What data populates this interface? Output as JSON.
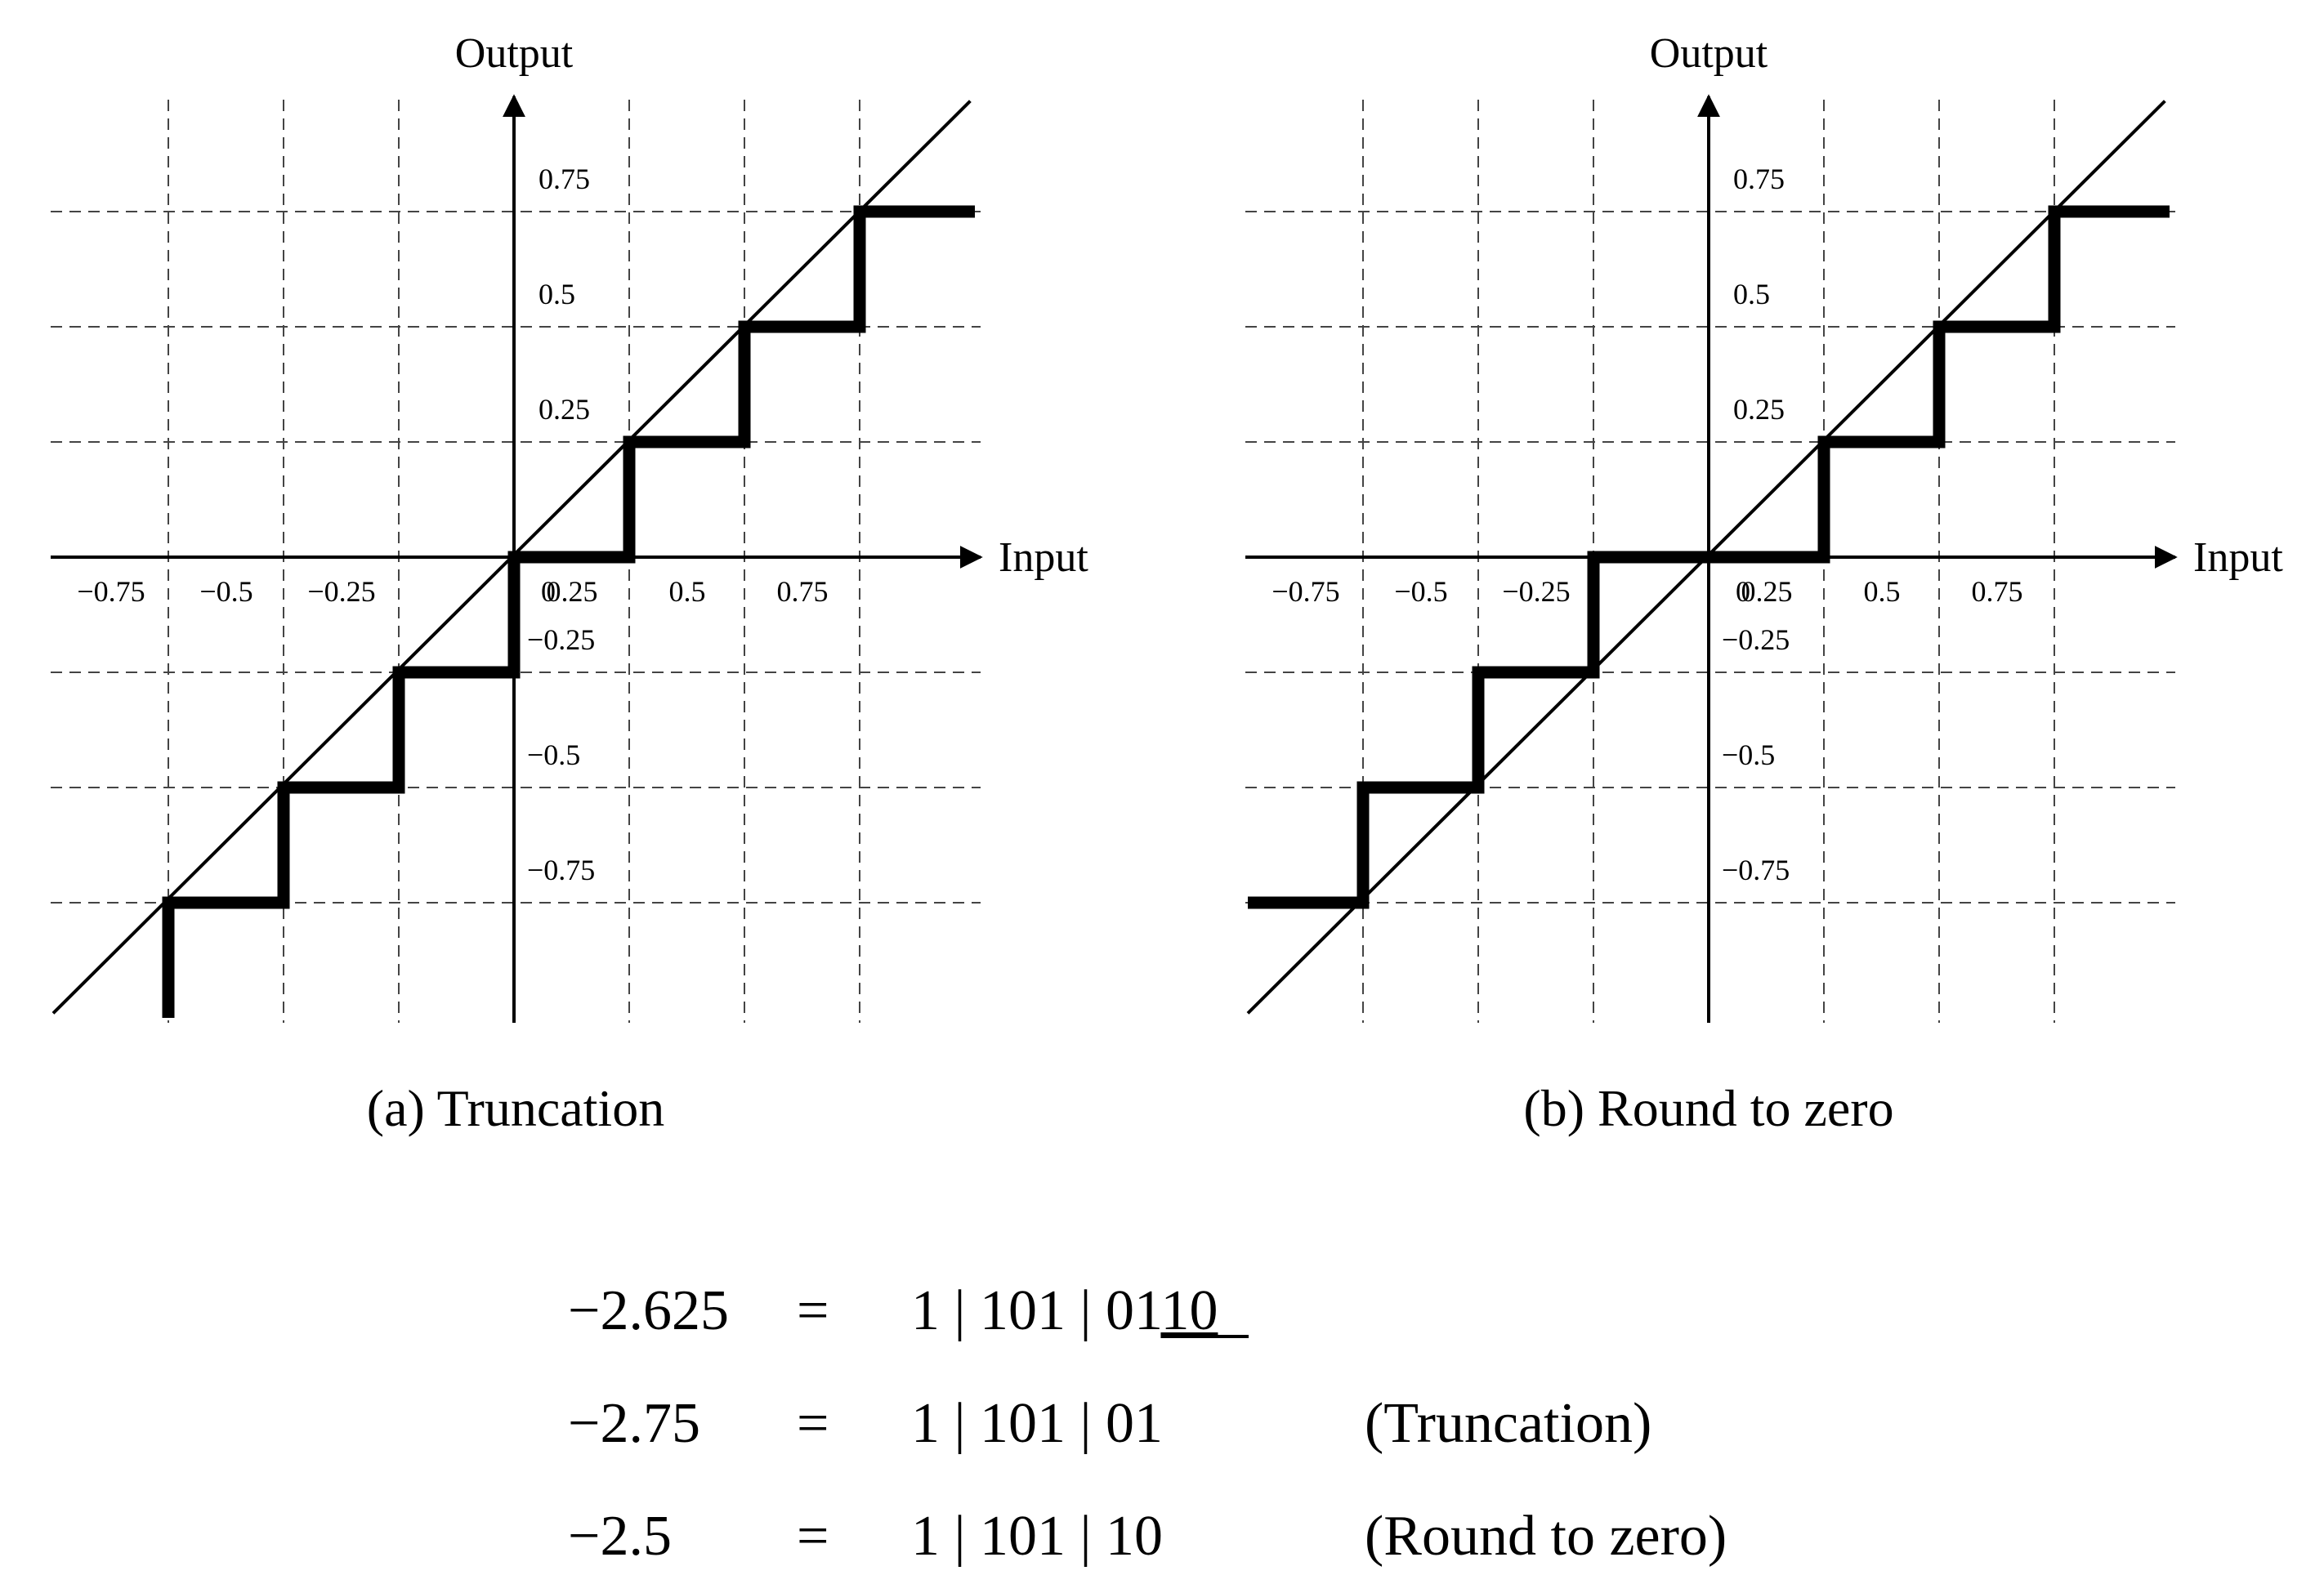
{
  "chart_data": [
    {
      "type": "line",
      "caption": "(a) Truncation",
      "xlabel": "Input",
      "ylabel": "Output",
      "x_ticks": [
        "−0.75",
        "−0.5",
        "−0.25",
        "0",
        "0.25",
        "0.5",
        "0.75"
      ],
      "y_ticks": [
        "0.75",
        "0.5",
        "0.25",
        "−0.25",
        "−0.5",
        "−0.75"
      ],
      "xlim": [
        -1,
        1
      ],
      "ylim": [
        -1,
        1
      ],
      "grid": true,
      "identity_line": true,
      "series": [
        {
          "points": [
            [
              -0.75,
              -1.0
            ],
            [
              -0.75,
              -0.75
            ],
            [
              -0.5,
              -0.75
            ],
            [
              -0.5,
              -0.5
            ],
            [
              -0.25,
              -0.5
            ],
            [
              -0.25,
              -0.25
            ],
            [
              0,
              -0.25
            ],
            [
              0,
              0
            ],
            [
              0.25,
              0
            ],
            [
              0.25,
              0.25
            ],
            [
              0.5,
              0.25
            ],
            [
              0.5,
              0.5
            ],
            [
              0.75,
              0.5
            ],
            [
              0.75,
              0.75
            ],
            [
              1.0,
              0.75
            ]
          ]
        }
      ]
    },
    {
      "type": "line",
      "caption": "(b) Round to zero",
      "xlabel": "Input",
      "ylabel": "Output",
      "x_ticks": [
        "−0.75",
        "−0.5",
        "−0.25",
        "0",
        "0.25",
        "0.5",
        "0.75"
      ],
      "y_ticks": [
        "0.75",
        "0.5",
        "0.25",
        "−0.25",
        "−0.5",
        "−0.75"
      ],
      "xlim": [
        -1,
        1
      ],
      "ylim": [
        -1,
        1
      ],
      "grid": true,
      "identity_line": true,
      "series": [
        {
          "points": [
            [
              -1.0,
              -0.75
            ],
            [
              -0.75,
              -0.75
            ],
            [
              -0.75,
              -0.5
            ],
            [
              -0.5,
              -0.5
            ],
            [
              -0.5,
              -0.25
            ],
            [
              -0.25,
              -0.25
            ],
            [
              -0.25,
              0
            ],
            [
              0.25,
              0
            ],
            [
              0.25,
              0.25
            ],
            [
              0.5,
              0.25
            ],
            [
              0.5,
              0.5
            ],
            [
              0.75,
              0.5
            ],
            [
              0.75,
              0.75
            ],
            [
              1.0,
              0.75
            ]
          ]
        }
      ]
    }
  ],
  "equations": [
    {
      "lhs": "−2.625",
      "eq": "=",
      "rhs_main": "1 | 101 | 01",
      "rhs_underlined": "10",
      "note": ""
    },
    {
      "lhs": "−2.75",
      "eq": "=",
      "rhs_main": "1 | 101 | 01",
      "rhs_underlined": "",
      "note": "(Truncation)"
    },
    {
      "lhs": "−2.5",
      "eq": "=",
      "rhs_main": "1 | 101 | 10",
      "rhs_underlined": "",
      "note": "(Round to zero)"
    }
  ]
}
